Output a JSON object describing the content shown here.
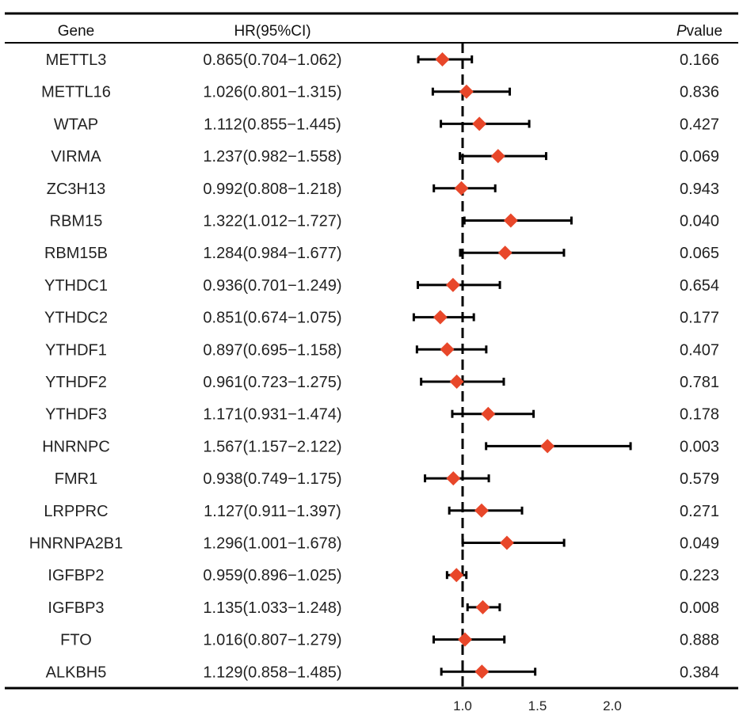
{
  "chart_data": {
    "type": "forest",
    "columns": {
      "gene": "Gene",
      "hr": "HR(95%CI)",
      "p_italic": "P",
      "p_rest": "value"
    },
    "reference_line": 1.0,
    "x_ticks": [
      "1.0",
      "1.5",
      "2.0"
    ],
    "xlim": [
      0.5,
      2.5
    ],
    "colors": {
      "marker": "#e8472a",
      "line": "#000000"
    },
    "rows": [
      {
        "gene": "METTL3",
        "hr": 0.865,
        "lo": 0.704,
        "hi": 1.062,
        "hr_text": "0.865(0.704−1.062)",
        "p": "0.166"
      },
      {
        "gene": "METTL16",
        "hr": 1.026,
        "lo": 0.801,
        "hi": 1.315,
        "hr_text": "1.026(0.801−1.315)",
        "p": "0.836"
      },
      {
        "gene": "WTAP",
        "hr": 1.112,
        "lo": 0.855,
        "hi": 1.445,
        "hr_text": "1.112(0.855−1.445)",
        "p": "0.427"
      },
      {
        "gene": "VIRMA",
        "hr": 1.237,
        "lo": 0.982,
        "hi": 1.558,
        "hr_text": "1.237(0.982−1.558)",
        "p": "0.069"
      },
      {
        "gene": "ZC3H13",
        "hr": 0.992,
        "lo": 0.808,
        "hi": 1.218,
        "hr_text": "0.992(0.808−1.218)",
        "p": "0.943"
      },
      {
        "gene": "RBM15",
        "hr": 1.322,
        "lo": 1.012,
        "hi": 1.727,
        "hr_text": "1.322(1.012−1.727)",
        "p": "0.040"
      },
      {
        "gene": "RBM15B",
        "hr": 1.284,
        "lo": 0.984,
        "hi": 1.677,
        "hr_text": "1.284(0.984−1.677)",
        "p": "0.065"
      },
      {
        "gene": "YTHDC1",
        "hr": 0.936,
        "lo": 0.701,
        "hi": 1.249,
        "hr_text": "0.936(0.701−1.249)",
        "p": "0.654"
      },
      {
        "gene": "YTHDC2",
        "hr": 0.851,
        "lo": 0.674,
        "hi": 1.075,
        "hr_text": "0.851(0.674−1.075)",
        "p": "0.177"
      },
      {
        "gene": "YTHDF1",
        "hr": 0.897,
        "lo": 0.695,
        "hi": 1.158,
        "hr_text": "0.897(0.695−1.158)",
        "p": "0.407"
      },
      {
        "gene": "YTHDF2",
        "hr": 0.961,
        "lo": 0.723,
        "hi": 1.275,
        "hr_text": "0.961(0.723−1.275)",
        "p": "0.781"
      },
      {
        "gene": "YTHDF3",
        "hr": 1.171,
        "lo": 0.931,
        "hi": 1.474,
        "hr_text": "1.171(0.931−1.474)",
        "p": "0.178"
      },
      {
        "gene": "HNRNPC",
        "hr": 1.567,
        "lo": 1.157,
        "hi": 2.122,
        "hr_text": "1.567(1.157−2.122)",
        "p": "0.003"
      },
      {
        "gene": "FMR1",
        "hr": 0.938,
        "lo": 0.749,
        "hi": 1.175,
        "hr_text": "0.938(0.749−1.175)",
        "p": "0.579"
      },
      {
        "gene": "LRPPRC",
        "hr": 1.127,
        "lo": 0.911,
        "hi": 1.397,
        "hr_text": "1.127(0.911−1.397)",
        "p": "0.271"
      },
      {
        "gene": "HNRNPA2B1",
        "hr": 1.296,
        "lo": 1.001,
        "hi": 1.678,
        "hr_text": "1.296(1.001−1.678)",
        "p": "0.049"
      },
      {
        "gene": "IGFBP2",
        "hr": 0.959,
        "lo": 0.896,
        "hi": 1.025,
        "hr_text": "0.959(0.896−1.025)",
        "p": "0.223"
      },
      {
        "gene": "IGFBP3",
        "hr": 1.135,
        "lo": 1.033,
        "hi": 1.248,
        "hr_text": "1.135(1.033−1.248)",
        "p": "0.008"
      },
      {
        "gene": "FTO",
        "hr": 1.016,
        "lo": 0.807,
        "hi": 1.279,
        "hr_text": "1.016(0.807−1.279)",
        "p": "0.888"
      },
      {
        "gene": "ALKBH5",
        "hr": 1.129,
        "lo": 0.858,
        "hi": 1.485,
        "hr_text": "1.129(0.858−1.485)",
        "p": "0.384"
      }
    ]
  }
}
